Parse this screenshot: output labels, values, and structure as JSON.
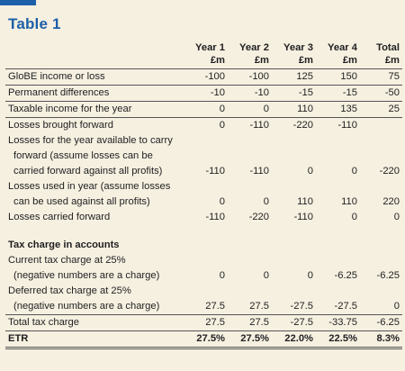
{
  "title": "Table 1",
  "columns": [
    {
      "year": "Year 1",
      "unit": "£m"
    },
    {
      "year": "Year 2",
      "unit": "£m"
    },
    {
      "year": "Year 3",
      "unit": "£m"
    },
    {
      "year": "Year 4",
      "unit": "£m"
    },
    {
      "year": "Total",
      "unit": "£m"
    }
  ],
  "rows": [
    {
      "label": "GloBE income or loss",
      "values": [
        "-100",
        "-100",
        "125",
        "150",
        "75"
      ]
    },
    {
      "label": "Permanent differences",
      "values": [
        "-10",
        "-10",
        "-15",
        "-15",
        "-50"
      ]
    },
    {
      "label": "Taxable income for the year",
      "values": [
        "0",
        "0",
        "110",
        "135",
        "25"
      ]
    },
    {
      "label": "Losses brought forward",
      "values": [
        "0",
        "-110",
        "-220",
        "-110",
        ""
      ]
    },
    {
      "label_lines": [
        "Losses for the year available to carry",
        "forward (assume losses can be",
        "carried forward against all profits)"
      ],
      "values": [
        "-110",
        "-110",
        "0",
        "0",
        "-220"
      ]
    },
    {
      "label_lines": [
        "Losses used in year (assume losses",
        "can be used against all profits)"
      ],
      "values": [
        "0",
        "0",
        "110",
        "110",
        "220"
      ]
    },
    {
      "label": "Losses carried forward",
      "values": [
        "-110",
        "-220",
        "-110",
        "0",
        "0"
      ]
    },
    {
      "section": "Tax charge in accounts"
    },
    {
      "label_lines": [
        "Current tax charge at 25%",
        "(negative numbers are a charge)"
      ],
      "values": [
        "0",
        "0",
        "0",
        "-6.25",
        "-6.25"
      ]
    },
    {
      "label_lines": [
        "Deferred tax charge at 25%",
        "(negative numbers are a charge)"
      ],
      "values": [
        "27.5",
        "27.5",
        "-27.5",
        "-27.5",
        "0"
      ]
    },
    {
      "label": "Total tax charge",
      "values": [
        "27.5",
        "27.5",
        "-27.5",
        "-33.75",
        "-6.25"
      ]
    },
    {
      "label": "ETR",
      "values": [
        "27.5%",
        "27.5%",
        "22.0%",
        "22.5%",
        "8.3%"
      ]
    }
  ]
}
